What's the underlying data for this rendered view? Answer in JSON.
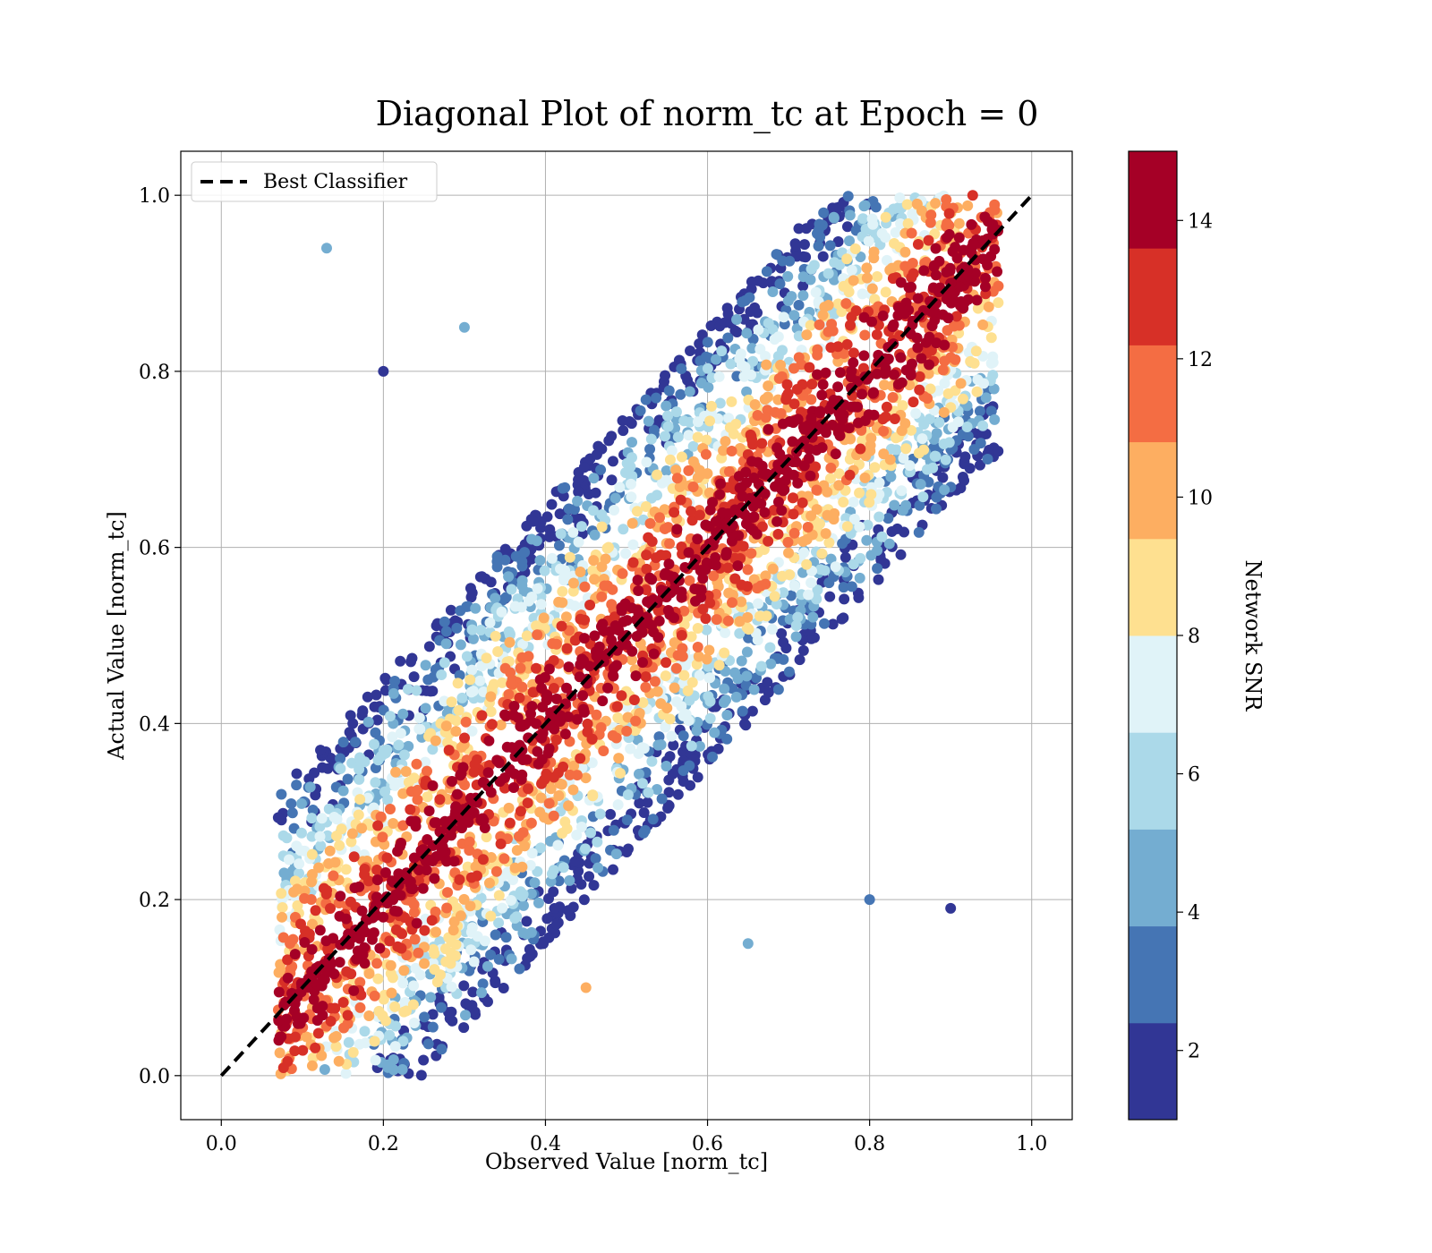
{
  "chart_data": {
    "type": "scatter",
    "title": "Diagonal Plot of norm_tc at Epoch = 0",
    "xlabel": "Observed Value [norm_tc]",
    "ylabel": "Actual Value [norm_tc]",
    "xlim": [
      -0.05,
      1.05
    ],
    "ylim": [
      -0.05,
      1.05
    ],
    "xticks": [
      "0.0",
      "0.2",
      "0.4",
      "0.6",
      "0.8",
      "1.0"
    ],
    "yticks": [
      "0.0",
      "0.2",
      "0.4",
      "0.6",
      "0.8",
      "1.0"
    ],
    "grid": true,
    "legend": {
      "position": "upper-left",
      "entries": [
        "Best Classifier"
      ]
    },
    "reference_line": {
      "name": "Best Classifier",
      "style": "dashed",
      "color": "#000000",
      "x": [
        0,
        1
      ],
      "y": [
        0,
        1
      ]
    },
    "colorbar": {
      "label": "Network SNR",
      "range": [
        1,
        15
      ],
      "ticks": [
        "2",
        "4",
        "6",
        "8",
        "10",
        "12",
        "14"
      ],
      "bins": [
        {
          "from": 1,
          "to": 2.4,
          "color": "#313695"
        },
        {
          "from": 2.4,
          "to": 3.8,
          "color": "#4575b4"
        },
        {
          "from": 3.8,
          "to": 5.2,
          "color": "#74add1"
        },
        {
          "from": 5.2,
          "to": 6.6,
          "color": "#abd9e9"
        },
        {
          "from": 6.6,
          "to": 8.0,
          "color": "#e0f3f8"
        },
        {
          "from": 8.0,
          "to": 9.4,
          "color": "#fee090"
        },
        {
          "from": 9.4,
          "to": 10.8,
          "color": "#fdae61"
        },
        {
          "from": 10.8,
          "to": 12.2,
          "color": "#f46d43"
        },
        {
          "from": 12.2,
          "to": 13.6,
          "color": "#d73027"
        },
        {
          "from": 13.6,
          "to": 15,
          "color": "#a50026"
        }
      ]
    },
    "scatter_summary": {
      "x_range": [
        0.07,
        0.96
      ],
      "y_range": [
        0.0,
        1.0
      ],
      "band_half_width": 0.25,
      "snr_vs_distance_from_diagonal": "high SNR points lie near the diagonal; low SNR points spread farther away"
    },
    "series": [
      {
        "name": "",
        "points_sample": [
          {
            "x": 0.1,
            "y": 0.1,
            "snr": 15
          },
          {
            "x": 0.3,
            "y": 0.3,
            "snr": 15
          },
          {
            "x": 0.5,
            "y": 0.5,
            "snr": 15
          },
          {
            "x": 0.7,
            "y": 0.7,
            "snr": 15
          },
          {
            "x": 0.9,
            "y": 0.9,
            "snr": 15
          },
          {
            "x": 0.45,
            "y": 0.1,
            "snr": 10
          },
          {
            "x": 0.65,
            "y": 0.15,
            "snr": 5
          },
          {
            "x": 0.3,
            "y": 0.85,
            "snr": 5
          },
          {
            "x": 0.8,
            "y": 0.2,
            "snr": 3
          },
          {
            "x": 0.2,
            "y": 0.8,
            "snr": 2
          },
          {
            "x": 0.9,
            "y": 0.19,
            "snr": 2
          },
          {
            "x": 0.13,
            "y": 0.94,
            "snr": 5
          }
        ]
      }
    ]
  }
}
